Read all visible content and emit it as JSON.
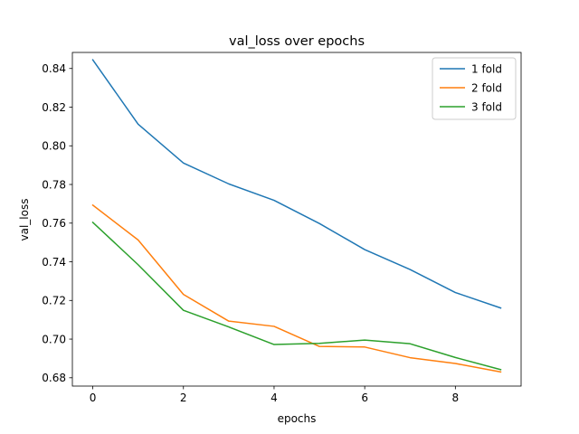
{
  "chart_data": {
    "type": "line",
    "title": "val_loss over epochs",
    "xlabel": "epochs",
    "ylabel": "val_loss",
    "xlim": [
      -0.45,
      9.45
    ],
    "ylim": [
      0.6757,
      0.8483
    ],
    "xticks": [
      0,
      2,
      4,
      6,
      8
    ],
    "yticks": [
      0.68,
      0.7,
      0.72,
      0.74,
      0.76,
      0.78,
      0.8,
      0.82,
      0.84
    ],
    "grid": false,
    "legend_position": "top-right",
    "x": [
      0,
      1,
      2,
      3,
      4,
      5,
      6,
      7,
      8,
      9
    ],
    "series": [
      {
        "name": "1 fold",
        "color": "#1f77b4",
        "values": [
          0.8445,
          0.8112,
          0.7911,
          0.7803,
          0.7718,
          0.7598,
          0.7463,
          0.736,
          0.7241,
          0.7161
        ]
      },
      {
        "name": "2 fold",
        "color": "#ff7f0e",
        "values": [
          0.7693,
          0.7513,
          0.7231,
          0.7093,
          0.7066,
          0.6962,
          0.6959,
          0.6904,
          0.6874,
          0.683
        ]
      },
      {
        "name": "3 fold",
        "color": "#2ca02c",
        "values": [
          0.7604,
          0.7385,
          0.7149,
          0.7063,
          0.6972,
          0.6978,
          0.6995,
          0.6976,
          0.6905,
          0.6842
        ]
      }
    ]
  }
}
